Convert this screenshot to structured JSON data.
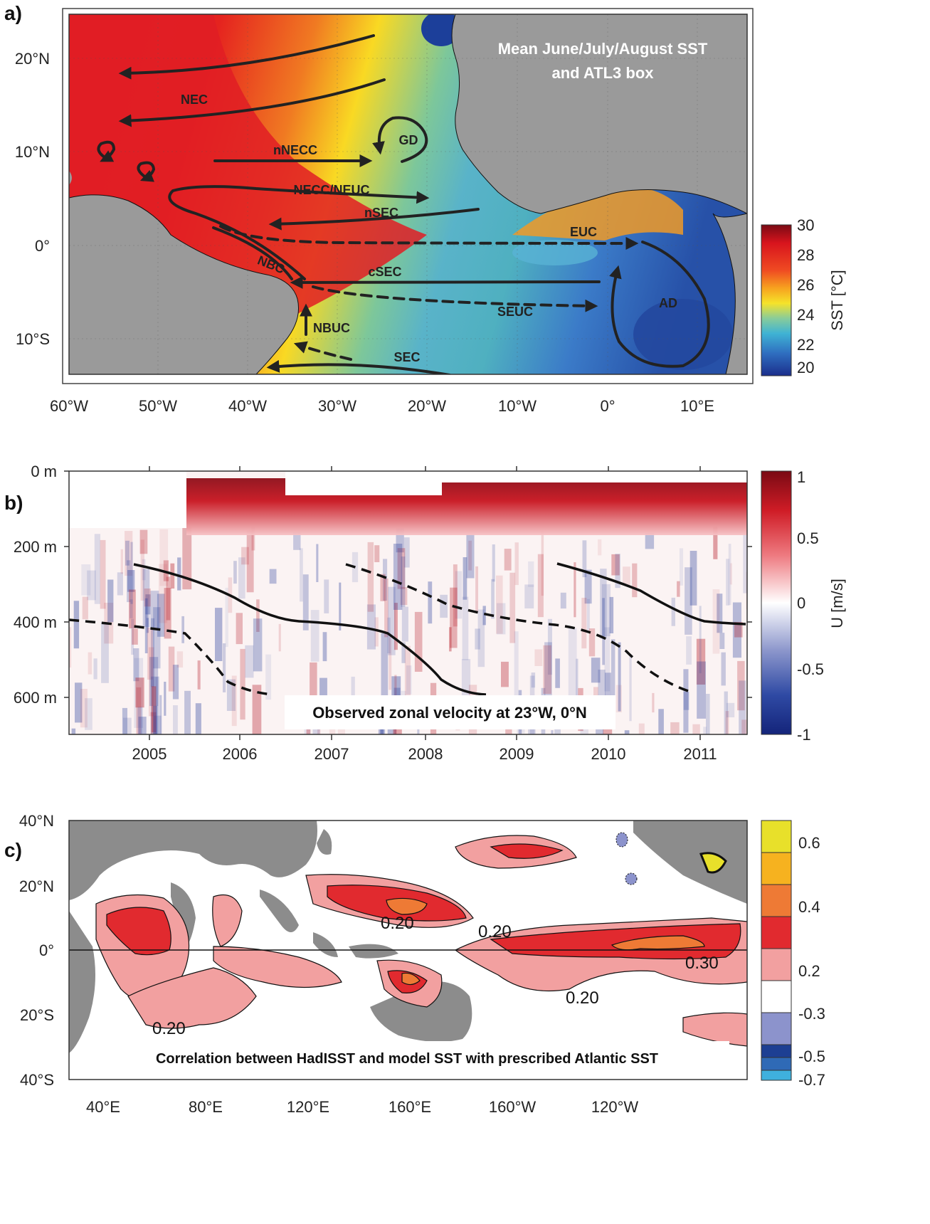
{
  "panel_a": {
    "letter": "a)",
    "title_line1": "Mean June/July/August SST",
    "title_line2": "and ATL3 box",
    "lat_ticks": [
      "20°N",
      "10°N",
      "0°",
      "10°S"
    ],
    "lon_ticks": [
      "60°W",
      "50°W",
      "40°W",
      "30°W",
      "20°W",
      "10°W",
      "0°",
      "10°E"
    ],
    "currents": [
      "NEC",
      "GD",
      "nNECC",
      "NECC/NEUC",
      "nSEC",
      "EUC",
      "NBC",
      "cSEC",
      "SEUC",
      "AD",
      "NBUC",
      "SEC"
    ],
    "colorbar": {
      "label": "SST [°C]",
      "ticks": [
        "30",
        "28",
        "26",
        "24",
        "22",
        "20"
      ]
    },
    "colors": {
      "land": "#9a9a9a",
      "warm": "#e11d24",
      "cold": "#1c3f9a"
    }
  },
  "panel_b": {
    "letter": "b)",
    "caption": "Observed zonal velocity at 23°W, 0°N",
    "depth_ticks": [
      "0 m",
      "200 m",
      "400 m",
      "600 m"
    ],
    "year_ticks": [
      "2005",
      "2006",
      "2007",
      "2008",
      "2009",
      "2010",
      "2011"
    ],
    "colorbar": {
      "label": "U [m/s]",
      "ticks": [
        "1",
        "0.5",
        "0",
        "-0.5",
        "-1"
      ]
    },
    "colors": {
      "eastward": "#b3121f",
      "westward": "#2a3f9c"
    }
  },
  "panel_c": {
    "letter": "c)",
    "caption": "Correlation between HadISST and model SST with prescribed Atlantic SST",
    "lat_ticks": [
      "40°N",
      "20°N",
      "0°",
      "20°S",
      "40°S"
    ],
    "lon_ticks": [
      "40°E",
      "80°E",
      "120°E",
      "160°E",
      "160°W",
      "120°W"
    ],
    "contour_labels": [
      "0.20",
      "0.20",
      "0.30",
      "0.20",
      "0.20"
    ],
    "colorbar": {
      "ticks": [
        "0.6",
        "0.4",
        "0.2",
        "-0.3",
        "-0.5",
        "-0.7"
      ]
    },
    "colors": {
      "land": "#8c8c8c",
      "r02": "#f2a0a0",
      "r03": "#e12a2f",
      "r04": "#ee7a35",
      "r06": "#e8e02a"
    }
  }
}
